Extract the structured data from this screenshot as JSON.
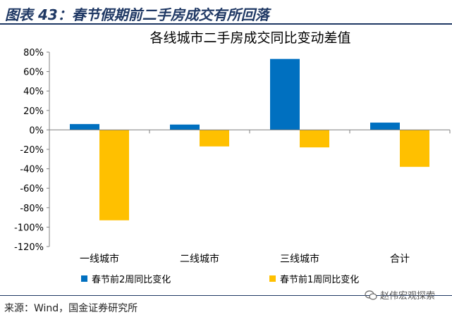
{
  "header": {
    "title": "图表 43：春节假期前二手房成交有所回落"
  },
  "chart_data": {
    "type": "bar",
    "title": "各线城市二手房成交同比变动差值",
    "categories": [
      "一线城市",
      "二线城市",
      "三线城市",
      "合计"
    ],
    "series": [
      {
        "name": "春节前2周同比变化",
        "values": [
          6,
          5.5,
          73,
          7.5
        ],
        "color": "#0070c0"
      },
      {
        "name": "春节前1周同比变化",
        "values": [
          -93,
          -17,
          -18,
          -38
        ],
        "color": "#ffc000"
      }
    ],
    "y_ticks": [
      "80%",
      "60%",
      "40%",
      "20%",
      "0%",
      "-20%",
      "-40%",
      "-60%",
      "-80%",
      "-100%",
      "-120%"
    ],
    "ylim": [
      -120,
      80
    ],
    "legend_position": "bottom",
    "grid": false
  },
  "footer": {
    "source": "来源：Wind，国金证券研究所",
    "watermark": "赵伟宏观探索",
    "watermark_icon": "wechat-icon"
  }
}
